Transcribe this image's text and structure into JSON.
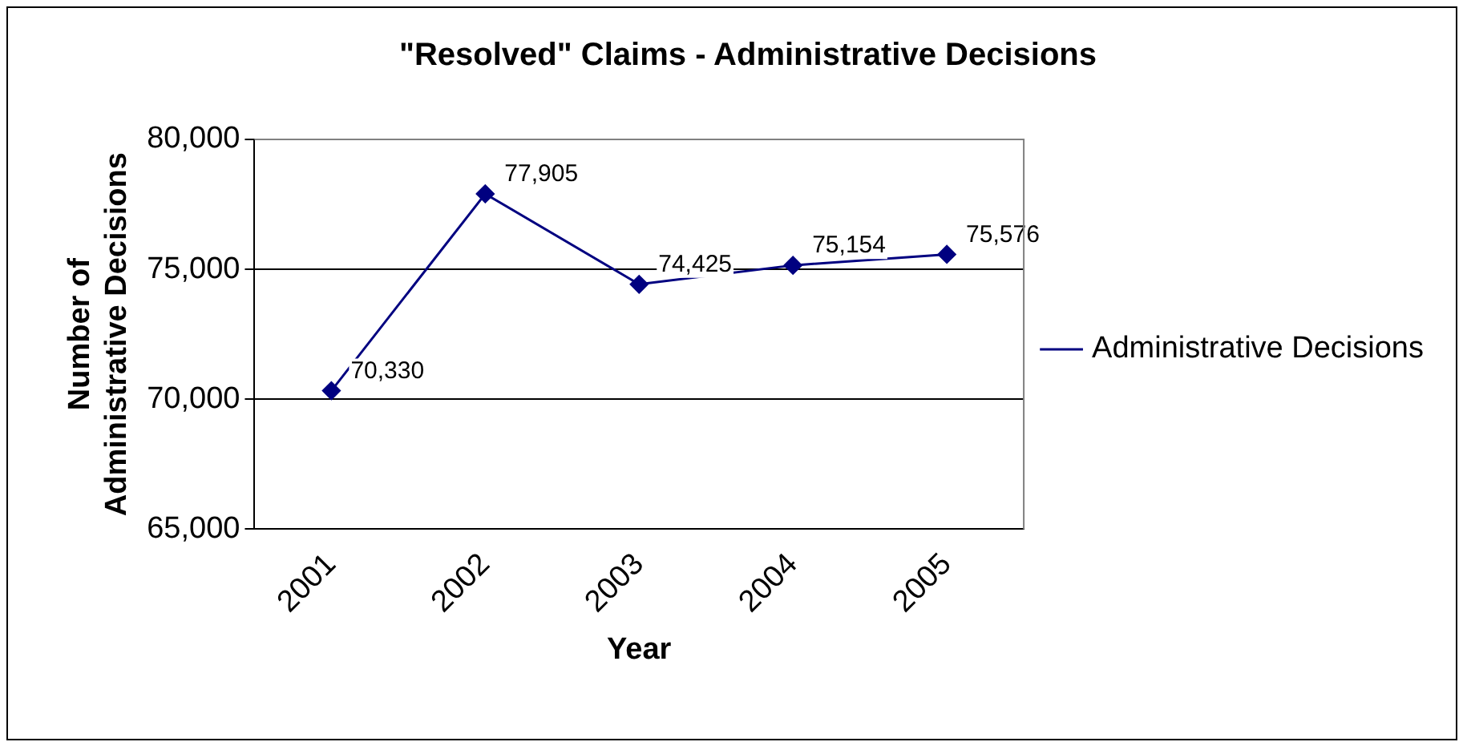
{
  "chart_data": {
    "type": "line",
    "title": "\"Resolved\" Claims - Administrative Decisions",
    "xlabel": "Year",
    "ylabel": "Number of Administrative Decisions",
    "categories": [
      "2001",
      "2002",
      "2003",
      "2004",
      "2005"
    ],
    "series": [
      {
        "name": "Administrative Decisions",
        "color": "#000080",
        "values": [
          70330,
          77905,
          74425,
          75154,
          75576
        ],
        "value_labels": [
          "70,330",
          "77,905",
          "74,425",
          "75,154",
          "75,576"
        ]
      }
    ],
    "ylim": [
      65000,
      80000
    ],
    "yticks": [
      {
        "value": 65000,
        "label": "65,000"
      },
      {
        "value": 70000,
        "label": "70,000"
      },
      {
        "value": 75000,
        "label": "75,000"
      },
      {
        "value": 80000,
        "label": "80,000"
      }
    ],
    "grid": "y",
    "legend": "right",
    "marker": "diamond",
    "line_style": "solid"
  }
}
